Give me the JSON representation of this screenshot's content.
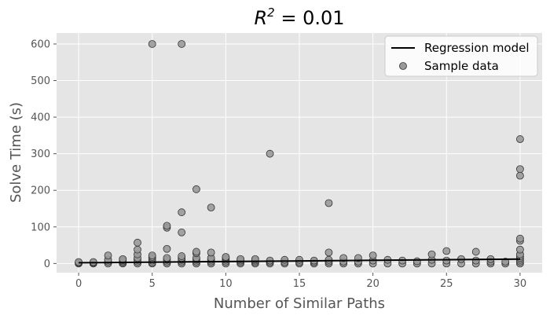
{
  "chart_data": {
    "type": "scatter",
    "title": {
      "base": "R",
      "sup": "2",
      "rest": " = 0.01"
    },
    "xlabel": "Number of Similar Paths",
    "ylabel": "Solve Time (s)",
    "xlim": [
      -1.5,
      31.5
    ],
    "ylim": [
      -25,
      630
    ],
    "xticks": [
      0,
      5,
      10,
      15,
      20,
      25,
      30
    ],
    "yticks": [
      0,
      100,
      200,
      300,
      400,
      500,
      600
    ],
    "grid": true,
    "legend_position": "top-right",
    "colors": {
      "panel": "#e5e5e5",
      "grid": "#ffffff",
      "points": "#999999",
      "point_edge": "#333333",
      "line": "#000000"
    },
    "series": [
      {
        "name": "Regression model",
        "kind": "line",
        "x": [
          0,
          30
        ],
        "y": [
          2,
          12
        ]
      },
      {
        "name": "Sample data",
        "kind": "scatter",
        "x": [
          0,
          0,
          0,
          1,
          1,
          1,
          2,
          2,
          2,
          2,
          3,
          3,
          3,
          3,
          3,
          4,
          4,
          4,
          4,
          4,
          4,
          4,
          5,
          5,
          5,
          5,
          5,
          5,
          5,
          6,
          6,
          6,
          6,
          6,
          6,
          6,
          7,
          7,
          7,
          7,
          7,
          7,
          7,
          8,
          8,
          8,
          8,
          8,
          8,
          8,
          9,
          9,
          9,
          9,
          9,
          9,
          10,
          10,
          10,
          10,
          10,
          11,
          11,
          11,
          11,
          12,
          12,
          12,
          12,
          13,
          13,
          13,
          13,
          14,
          14,
          14,
          15,
          15,
          15,
          16,
          16,
          16,
          17,
          17,
          17,
          17,
          17,
          18,
          18,
          18,
          19,
          19,
          19,
          20,
          20,
          20,
          21,
          21,
          22,
          22,
          23,
          23,
          24,
          24,
          24,
          25,
          25,
          25,
          26,
          26,
          27,
          27,
          27,
          28,
          28,
          28,
          29,
          29,
          30,
          30,
          30,
          30,
          30,
          30,
          30,
          30,
          30,
          30,
          30
        ],
        "y": [
          0,
          2,
          4,
          0,
          2,
          4,
          0,
          5,
          10,
          22,
          0,
          3,
          6,
          9,
          12,
          0,
          5,
          10,
          15,
          25,
          38,
          57,
          0,
          3,
          8,
          14,
          18,
          22,
          600,
          0,
          5,
          10,
          15,
          40,
          98,
          103,
          0,
          5,
          10,
          15,
          20,
          85,
          140,
          0,
          5,
          10,
          15,
          28,
          32,
          203,
          0,
          5,
          10,
          15,
          30,
          153,
          0,
          5,
          10,
          15,
          18,
          0,
          4,
          8,
          12,
          0,
          4,
          8,
          12,
          0,
          4,
          8,
          300,
          0,
          4,
          10,
          0,
          4,
          10,
          0,
          4,
          8,
          0,
          5,
          10,
          30,
          165,
          0,
          5,
          15,
          0,
          5,
          15,
          0,
          8,
          22,
          0,
          10,
          0,
          8,
          0,
          6,
          0,
          10,
          25,
          0,
          8,
          34,
          0,
          12,
          0,
          8,
          32,
          0,
          5,
          12,
          0,
          5,
          0,
          5,
          10,
          15,
          20,
          25,
          38,
          62,
          68,
          240,
          258
        ],
        "extra": {
          "x": [
            7,
            30
          ],
          "y": [
            600,
            340
          ]
        }
      }
    ]
  }
}
